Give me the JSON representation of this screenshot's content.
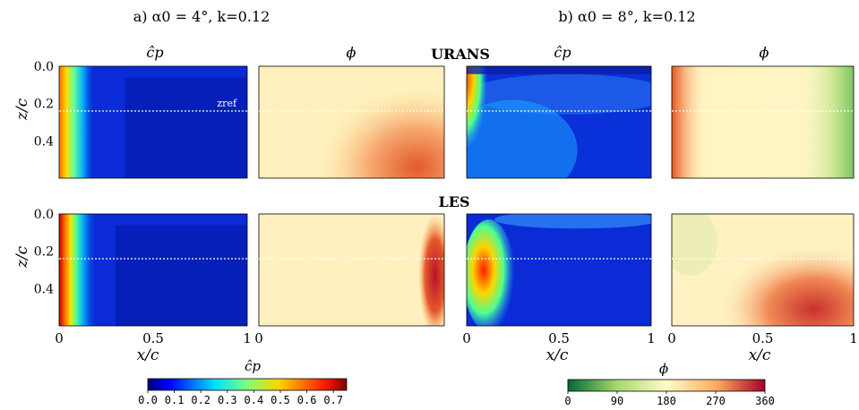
{
  "chart_data": {
    "type": "heatmap",
    "caption_left": "a) α0 = 4°,  k=0.12",
    "caption_right": "b) α0 = 8°, k=0.12",
    "row_titles": [
      "URANS",
      "LES"
    ],
    "panel_titles": {
      "cp": "ĉp",
      "phi": "ϕ"
    },
    "xlabel": "x/c",
    "ylabel": "z/c",
    "zref_label": "zref",
    "zref_value": 0.24,
    "xlim": [
      0,
      1
    ],
    "ylim": [
      0,
      0.6
    ],
    "x_ticks": [
      "0",
      "0.5",
      "1"
    ],
    "y_ticks": [
      "0.0",
      "0.2",
      "0.4"
    ],
    "colorbar_cp": {
      "label": "ĉp",
      "range": [
        0,
        0.75
      ],
      "ticks": [
        "0.0",
        "0.1",
        "0.2",
        "0.3",
        "0.4",
        "0.5",
        "0.6",
        "0.7"
      ],
      "colormap": "jet"
    },
    "colorbar_phi": {
      "label": "ϕ",
      "range": [
        0,
        360
      ],
      "ticks": [
        "0",
        "90",
        "180",
        "270",
        "360"
      ],
      "colormap": "green-yellow-red"
    },
    "panels": [
      {
        "row": "URANS",
        "case": "a",
        "variable": "cp"
      },
      {
        "row": "URANS",
        "case": "a",
        "variable": "phi"
      },
      {
        "row": "URANS",
        "case": "b",
        "variable": "cp"
      },
      {
        "row": "URANS",
        "case": "b",
        "variable": "phi"
      },
      {
        "row": "LES",
        "case": "a",
        "variable": "cp"
      },
      {
        "row": "LES",
        "case": "a",
        "variable": "phi"
      },
      {
        "row": "LES",
        "case": "b",
        "variable": "cp"
      },
      {
        "row": "LES",
        "case": "b",
        "variable": "phi"
      }
    ]
  }
}
